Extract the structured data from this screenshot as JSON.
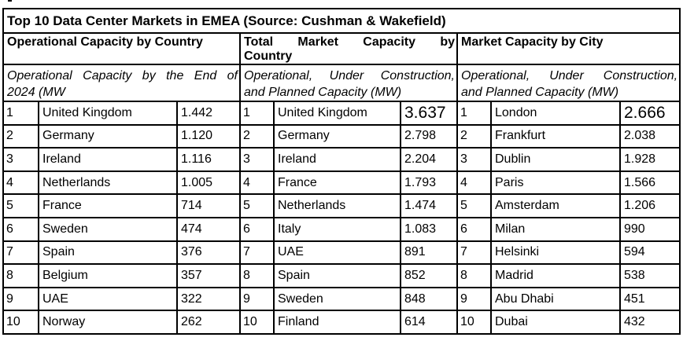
{
  "title": "Top 10 Data Center Markets in EMEA (Source: Cushman & Wakefield)",
  "colors": {
    "text": "#000000",
    "border": "#000000",
    "background": "#ffffff"
  },
  "sections": [
    {
      "header_lines": [
        "Operational Capacity by Country"
      ],
      "subtitle_lines": [
        "Operational Capacity by the End of",
        "2024 (MW"
      ],
      "rows": [
        {
          "rank": "1",
          "name": "United Kingdom",
          "value": "1.442"
        },
        {
          "rank": "2",
          "name": "Germany",
          "value": "1.120"
        },
        {
          "rank": "3",
          "name": "Ireland",
          "value": "1.116"
        },
        {
          "rank": "4",
          "name": "Netherlands",
          "value": "1.005"
        },
        {
          "rank": "5",
          "name": "France",
          "value": "714"
        },
        {
          "rank": "6",
          "name": "Sweden",
          "value": "474"
        },
        {
          "rank": "7",
          "name": "Spain",
          "value": "376"
        },
        {
          "rank": "8",
          "name": "Belgium",
          "value": "357"
        },
        {
          "rank": "9",
          "name": "UAE",
          "value": "322"
        },
        {
          "rank": "10",
          "name": "Norway",
          "value": "262"
        }
      ]
    },
    {
      "header_lines": [
        "Total Market Capacity by",
        "Country"
      ],
      "subtitle_lines": [
        "Operational, Under Construction,",
        "and Planned Capacity (MW)"
      ],
      "rows": [
        {
          "rank": "1",
          "name": "United Kingdom",
          "value": "3.637",
          "emphasis": true
        },
        {
          "rank": "2",
          "name": "Germany",
          "value": "2.798"
        },
        {
          "rank": "3",
          "name": "Ireland",
          "value": "2.204"
        },
        {
          "rank": "4",
          "name": "France",
          "value": "1.793"
        },
        {
          "rank": "5",
          "name": "Netherlands",
          "value": "1.474"
        },
        {
          "rank": "6",
          "name": "Italy",
          "value": "1.083"
        },
        {
          "rank": "7",
          "name": "UAE",
          "value": "891"
        },
        {
          "rank": "8",
          "name": "Spain",
          "value": "852"
        },
        {
          "rank": "9",
          "name": "Sweden",
          "value": "848"
        },
        {
          "rank": "10",
          "name": "Finland",
          "value": "614"
        }
      ]
    },
    {
      "header_lines": [
        "Market Capacity by City"
      ],
      "subtitle_lines": [
        "Operational, Under Construction,",
        "and Planned Capacity (MW)"
      ],
      "rows": [
        {
          "rank": "1",
          "name": "London",
          "value": "2.666",
          "emphasis": true
        },
        {
          "rank": "2",
          "name": "Frankfurt",
          "value": "2.038"
        },
        {
          "rank": "3",
          "name": "Dublin",
          "value": "1.928"
        },
        {
          "rank": "4",
          "name": "Paris",
          "value": "1.566"
        },
        {
          "rank": "5",
          "name": "Amsterdam",
          "value": "1.206"
        },
        {
          "rank": "6",
          "name": "Milan",
          "value": "990"
        },
        {
          "rank": "7",
          "name": "Helsinki",
          "value": "594"
        },
        {
          "rank": "8",
          "name": "Madrid",
          "value": "538"
        },
        {
          "rank": "9",
          "name": "Abu Dhabi",
          "value": "451"
        },
        {
          "rank": "10",
          "name": "Dubai",
          "value": "432"
        }
      ]
    }
  ]
}
